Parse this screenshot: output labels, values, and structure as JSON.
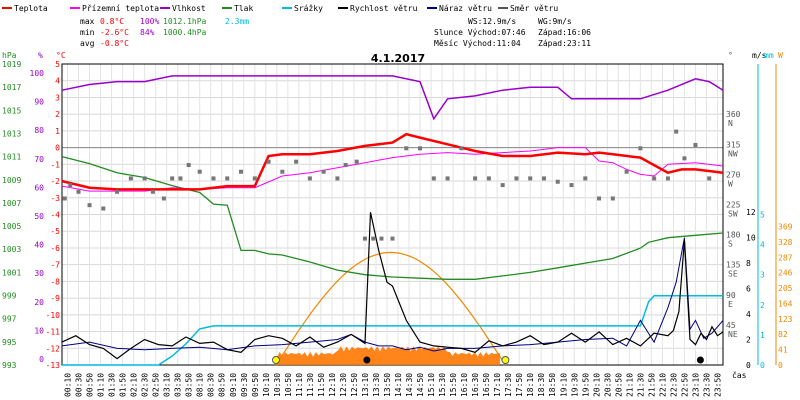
{
  "chart_data": {
    "type": "line",
    "title": "4.1.2017",
    "legend": [
      {
        "key": "teplota",
        "label": "Teplota",
        "color": "#ff0000"
      },
      {
        "key": "prizemni",
        "label": "Přízemní teplota",
        "color": "#ff00ff"
      },
      {
        "key": "vlhkost",
        "label": "Vlhkost",
        "color": "#9900cc"
      },
      {
        "key": "tlak",
        "label": "Tlak",
        "color": "#228b22"
      },
      {
        "key": "srazky",
        "label": "Srážky",
        "color": "#00bbdd"
      },
      {
        "key": "rychlost",
        "label": "Rychlost větru",
        "color": "#000000"
      },
      {
        "key": "naraz",
        "label": "Náraz větru",
        "color": "#000088"
      },
      {
        "key": "smer",
        "label": "Směr větru",
        "color": "#555555"
      }
    ],
    "stats": {
      "max": {
        "label": "max",
        "temp": "0.8°C",
        "hum": "100%",
        "press": "1012.1hPa",
        "rain": "2.3mm"
      },
      "min": {
        "label": "min",
        "temp": "-2.6°C",
        "hum": "84%",
        "press": "1000.4hPa"
      },
      "avg": {
        "label": "avg",
        "temp": "-0.8°C"
      }
    },
    "info": {
      "ws": "WS:12.9m/s",
      "wg": "WG:9m/s",
      "slunce": "Slunce Východ:07:46",
      "slunce_zapad": "Západ:16:06",
      "mesic": "Měsíc  Východ:11:04",
      "mesic_zapad": "Západ:23:11"
    },
    "x_label": "čas",
    "x_ticks": [
      "00:10",
      "00:30",
      "00:50",
      "01:10",
      "01:30",
      "01:50",
      "02:10",
      "02:30",
      "02:50",
      "03:10",
      "03:30",
      "03:50",
      "08:10",
      "08:30",
      "08:50",
      "09:10",
      "09:30",
      "09:50",
      "10:10",
      "10:30",
      "10:50",
      "11:10",
      "11:30",
      "11:50",
      "12:10",
      "12:30",
      "12:50",
      "13:10",
      "13:30",
      "13:50",
      "14:10",
      "14:30",
      "14:50",
      "15:10",
      "15:30",
      "15:50",
      "16:10",
      "16:30",
      "16:50",
      "17:10",
      "17:30",
      "17:50",
      "18:10",
      "18:30",
      "18:50",
      "19:10",
      "19:30",
      "19:50",
      "20:10",
      "20:30",
      "20:50",
      "21:10",
      "21:30",
      "21:50",
      "22:10",
      "22:30",
      "22:50",
      "23:10",
      "23:30",
      "23:50"
    ],
    "axes": {
      "hpa": {
        "unit": "hPa",
        "ticks": [
          "993",
          "995",
          "997",
          "999",
          "1001",
          "1003",
          "1005",
          "1007",
          "1009",
          "1011",
          "1013",
          "1015",
          "1017",
          "1019"
        ]
      },
      "pct": {
        "unit": "%",
        "ticks": [
          "0",
          "10",
          "20",
          "30",
          "40",
          "50",
          "60",
          "70",
          "80",
          "90",
          "100"
        ]
      },
      "temp": {
        "unit": "°C",
        "ticks": [
          "-13",
          "-12",
          "-11",
          "-10",
          "-9",
          "-8",
          "-7",
          "-6",
          "-5",
          "-4",
          "-3",
          "-2",
          "-1",
          "0",
          "1",
          "2",
          "3",
          "4",
          "5"
        ]
      },
      "dir": {
        "unit": "°",
        "ticks": [
          "360",
          "315",
          "270",
          "225",
          "180",
          "135",
          "90",
          "45"
        ],
        "labels": [
          "N",
          "NW",
          "W",
          "SW",
          "S",
          "SE",
          "E",
          "NE"
        ]
      },
      "ms": {
        "unit": "m/s",
        "ticks": [
          "0",
          "2",
          "4",
          "6",
          "8",
          "10",
          "12"
        ]
      },
      "mm": {
        "unit": "mm",
        "ticks": [
          "0",
          "1",
          "2",
          "3",
          "4",
          "5"
        ]
      },
      "w": {
        "unit": "W",
        "ticks": [
          "0",
          "41",
          "82",
          "123",
          "164",
          "205",
          "246",
          "287",
          "328",
          "369"
        ]
      }
    },
    "series": [
      {
        "key": "teplota",
        "x": [
          0,
          1,
          2,
          3,
          4,
          5,
          6,
          7,
          7.5,
          8,
          9,
          10,
          11,
          12,
          12.5,
          13,
          14,
          15,
          16,
          17,
          18,
          19,
          19.5,
          20,
          21,
          22,
          22.5,
          23,
          24
        ],
        "y": [
          -2,
          -2.4,
          -2.5,
          -2.5,
          -2.5,
          -2.5,
          -2.3,
          -2.3,
          -0.5,
          -0.4,
          -0.4,
          -0.2,
          0.1,
          0.3,
          0.8,
          0.6,
          0.2,
          -0.2,
          -0.5,
          -0.5,
          -0.3,
          -0.4,
          -0.3,
          -0.4,
          -0.6,
          -1.5,
          -1.3,
          -1.3,
          -1.5
        ]
      },
      {
        "key": "prizemni",
        "x": [
          0,
          1,
          2,
          3,
          4,
          5,
          6,
          7,
          8,
          9,
          10,
          11,
          12,
          13,
          14,
          15,
          16,
          17,
          18,
          19,
          19.5,
          20,
          20.5,
          21,
          21.5,
          22,
          23,
          24
        ],
        "y": [
          -2.3,
          -2.6,
          -2.6,
          -2.6,
          -2.4,
          -2.5,
          -2.4,
          -2.4,
          -1.7,
          -1.5,
          -1.2,
          -0.9,
          -0.6,
          -0.4,
          -0.3,
          -0.4,
          -0.3,
          -0.2,
          0,
          0,
          -0.8,
          -0.9,
          -1.3,
          -1.6,
          -1.7,
          -1,
          -0.9,
          -1.1
        ]
      },
      {
        "key": "vlhkost",
        "x": [
          0,
          1,
          2,
          3,
          4,
          5,
          6,
          7,
          8,
          9,
          10,
          11,
          12,
          13,
          13.5,
          14,
          15,
          16,
          17,
          18,
          18.5,
          19,
          20,
          21,
          22,
          23,
          23.5,
          24
        ],
        "y": [
          94,
          96,
          97,
          97,
          99,
          99,
          99,
          99,
          99,
          99,
          99,
          99,
          99,
          97,
          84,
          91,
          92,
          94,
          95,
          95,
          91,
          91,
          91,
          91,
          94,
          98,
          97,
          94
        ]
      },
      {
        "key": "tlak",
        "x": [
          0,
          1,
          2,
          3,
          4,
          5,
          5.5,
          6,
          6.5,
          7,
          7.5,
          8,
          9,
          10,
          11,
          12,
          13,
          14,
          15,
          16,
          17,
          18,
          19,
          20,
          21,
          21.3,
          22,
          23,
          24
        ],
        "y": [
          1011.0,
          1010.4,
          1009.6,
          1009.2,
          1008.5,
          1007.9,
          1006.9,
          1006.8,
          1002.9,
          1002.9,
          1002.6,
          1002.5,
          1001.9,
          1001.2,
          1000.8,
          1000.6,
          1000.5,
          1000.4,
          1000.4,
          1000.7,
          1001.0,
          1001.4,
          1001.8,
          1002.2,
          1003.1,
          1003.6,
          1004.0,
          1004.2,
          1004.4
        ]
      },
      {
        "key": "srazky",
        "x": [
          0,
          3,
          3.5,
          4,
          4.5,
          5,
          5.5,
          6,
          7,
          8,
          13,
          14,
          20,
          21,
          21.3,
          21.5,
          22,
          23,
          24
        ],
        "y": [
          0,
          0,
          0,
          0.3,
          0.7,
          1.2,
          1.3,
          1.3,
          1.3,
          1.3,
          1.3,
          1.3,
          1.3,
          1.3,
          2.1,
          2.3,
          2.3,
          2.3,
          2.3
        ]
      },
      {
        "key": "rychlost",
        "x": [
          0,
          0.5,
          1,
          1.5,
          2,
          2.5,
          3,
          3.5,
          4,
          4.5,
          5,
          5.5,
          6,
          6.5,
          7,
          7.5,
          8,
          8.5,
          9,
          9.5,
          10,
          10.5,
          11,
          11.2,
          11.5,
          11.8,
          12,
          12.5,
          13,
          13.5,
          14,
          14.5,
          15,
          15.5,
          16,
          16.5,
          17,
          17.5,
          18,
          18.5,
          19,
          19.5,
          20,
          20.5,
          21,
          21.5,
          22,
          22.2,
          22.4,
          22.6,
          22.8,
          23,
          23.2,
          23.4,
          23.6,
          23.8,
          24
        ],
        "y": [
          1.8,
          2.3,
          1.6,
          1.3,
          0.5,
          1.3,
          2.0,
          1.6,
          1.5,
          2.2,
          1.7,
          1.8,
          1.2,
          1.0,
          2.0,
          2.3,
          2.1,
          1.5,
          2.2,
          1.4,
          1.8,
          2.4,
          1.7,
          12.0,
          9.0,
          6.5,
          6.2,
          3.5,
          1.8,
          1.5,
          1.4,
          1.3,
          1.0,
          1.9,
          1.5,
          1.8,
          2.3,
          1.6,
          1.8,
          2.5,
          1.8,
          2.6,
          1.6,
          2.1,
          1.5,
          2.5,
          2.3,
          2.7,
          4.2,
          9.8,
          2.0,
          1.6,
          2.5,
          2.0,
          3.0,
          2.3,
          2.6
        ]
      },
      {
        "key": "naraz",
        "x": [
          0,
          1,
          2,
          3,
          4,
          5,
          6,
          7,
          8,
          9,
          10,
          10.5,
          11,
          11.5,
          12,
          12.5,
          13,
          13.5,
          14,
          15,
          16,
          17,
          18,
          19,
          20,
          20.5,
          21,
          21.5,
          22,
          22.3,
          22.6,
          22.8,
          23,
          23.3,
          23.6,
          24
        ],
        "y": [
          1.5,
          1.8,
          1.3,
          1.2,
          1.3,
          1.4,
          1.2,
          1.5,
          1.6,
          1.8,
          2.0,
          2.4,
          1.8,
          1.5,
          1.5,
          1.2,
          1.4,
          1.1,
          1.3,
          1.3,
          1.5,
          1.6,
          1.8,
          2.0,
          2.1,
          1.5,
          3.5,
          1.8,
          4.5,
          6.5,
          10.0,
          2.8,
          3.5,
          2.1,
          2.5,
          3.5
        ]
      },
      {
        "key": "smer",
        "x": [
          0.1,
          0.3,
          0.6,
          1.0,
          1.5,
          2.0,
          2.5,
          3.0,
          3.3,
          3.7,
          4.0,
          4.3,
          4.6,
          5.0,
          5.5,
          6.0,
          6.5,
          7.0,
          7.5,
          8.0,
          8.5,
          9.0,
          9.5,
          10.0,
          10.3,
          10.7,
          11.0,
          11.3,
          11.6,
          12.0,
          12.5,
          13.0,
          13.5,
          14.0,
          14.5,
          15.0,
          15.5,
          16.0,
          16.5,
          17.0,
          17.5,
          18.0,
          18.5,
          19.0,
          19.5,
          20.0,
          20.5,
          21.0,
          21.5,
          22.0,
          22.3,
          22.6,
          23.0,
          23.5
        ],
        "y": [
          240,
          260,
          250,
          230,
          225,
          250,
          270,
          270,
          250,
          240,
          270,
          270,
          290,
          280,
          270,
          270,
          280,
          270,
          295,
          280,
          295,
          270,
          280,
          270,
          290,
          295,
          180,
          180,
          180,
          180,
          315,
          315,
          270,
          270,
          315,
          270,
          270,
          260,
          270,
          270,
          270,
          265,
          260,
          270,
          240,
          240,
          280,
          315,
          270,
          270,
          340,
          300,
          320,
          270
        ]
      }
    ]
  }
}
